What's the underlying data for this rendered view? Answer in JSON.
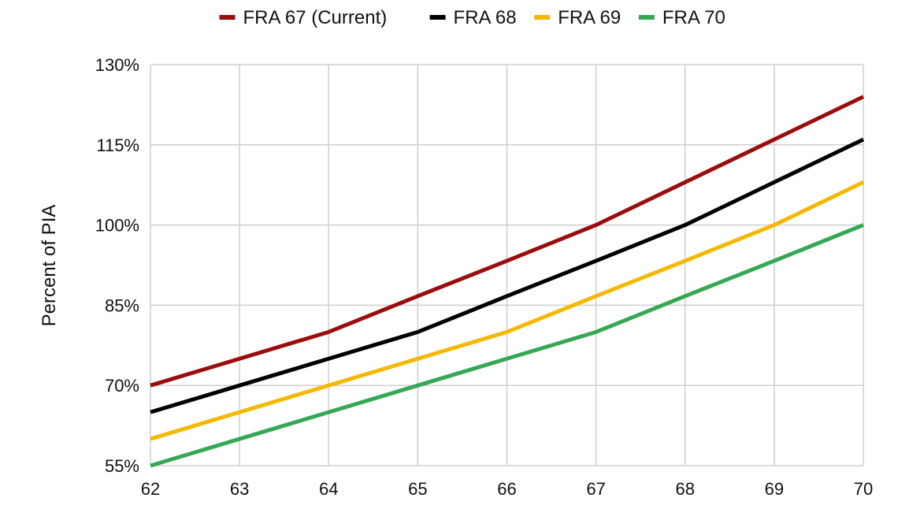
{
  "chart_data": {
    "type": "line",
    "title": "",
    "xlabel": "",
    "ylabel": "Percent of PIA",
    "x": [
      62,
      63,
      64,
      65,
      66,
      67,
      68,
      69,
      70
    ],
    "xlim": [
      62,
      70
    ],
    "ylim": [
      55,
      130
    ],
    "y_ticks": [
      55,
      70,
      85,
      100,
      115,
      130
    ],
    "y_tick_labels": [
      "55%",
      "70%",
      "85%",
      "100%",
      "115%",
      "130%"
    ],
    "x_tick_labels": [
      "62",
      "63",
      "64",
      "65",
      "66",
      "67",
      "68",
      "69",
      "70"
    ],
    "grid": true,
    "legend_position": "top",
    "series": [
      {
        "name": "FRA 67 (Current)",
        "color": "#9b0d0d",
        "values": [
          70,
          75,
          80,
          86.7,
          93.3,
          100,
          108,
          116,
          124
        ]
      },
      {
        "name": "FRA 68",
        "color": "#000000",
        "values": [
          65,
          70,
          75,
          80,
          86.7,
          93.3,
          100,
          108,
          116
        ]
      },
      {
        "name": "FRA 69",
        "color": "#f5b800",
        "values": [
          60,
          65,
          70,
          75,
          80,
          86.7,
          93.3,
          100,
          108
        ]
      },
      {
        "name": "FRA 70",
        "color": "#34a853",
        "values": [
          55,
          60,
          65,
          70,
          75,
          80,
          86.7,
          93.3,
          100
        ]
      }
    ]
  }
}
